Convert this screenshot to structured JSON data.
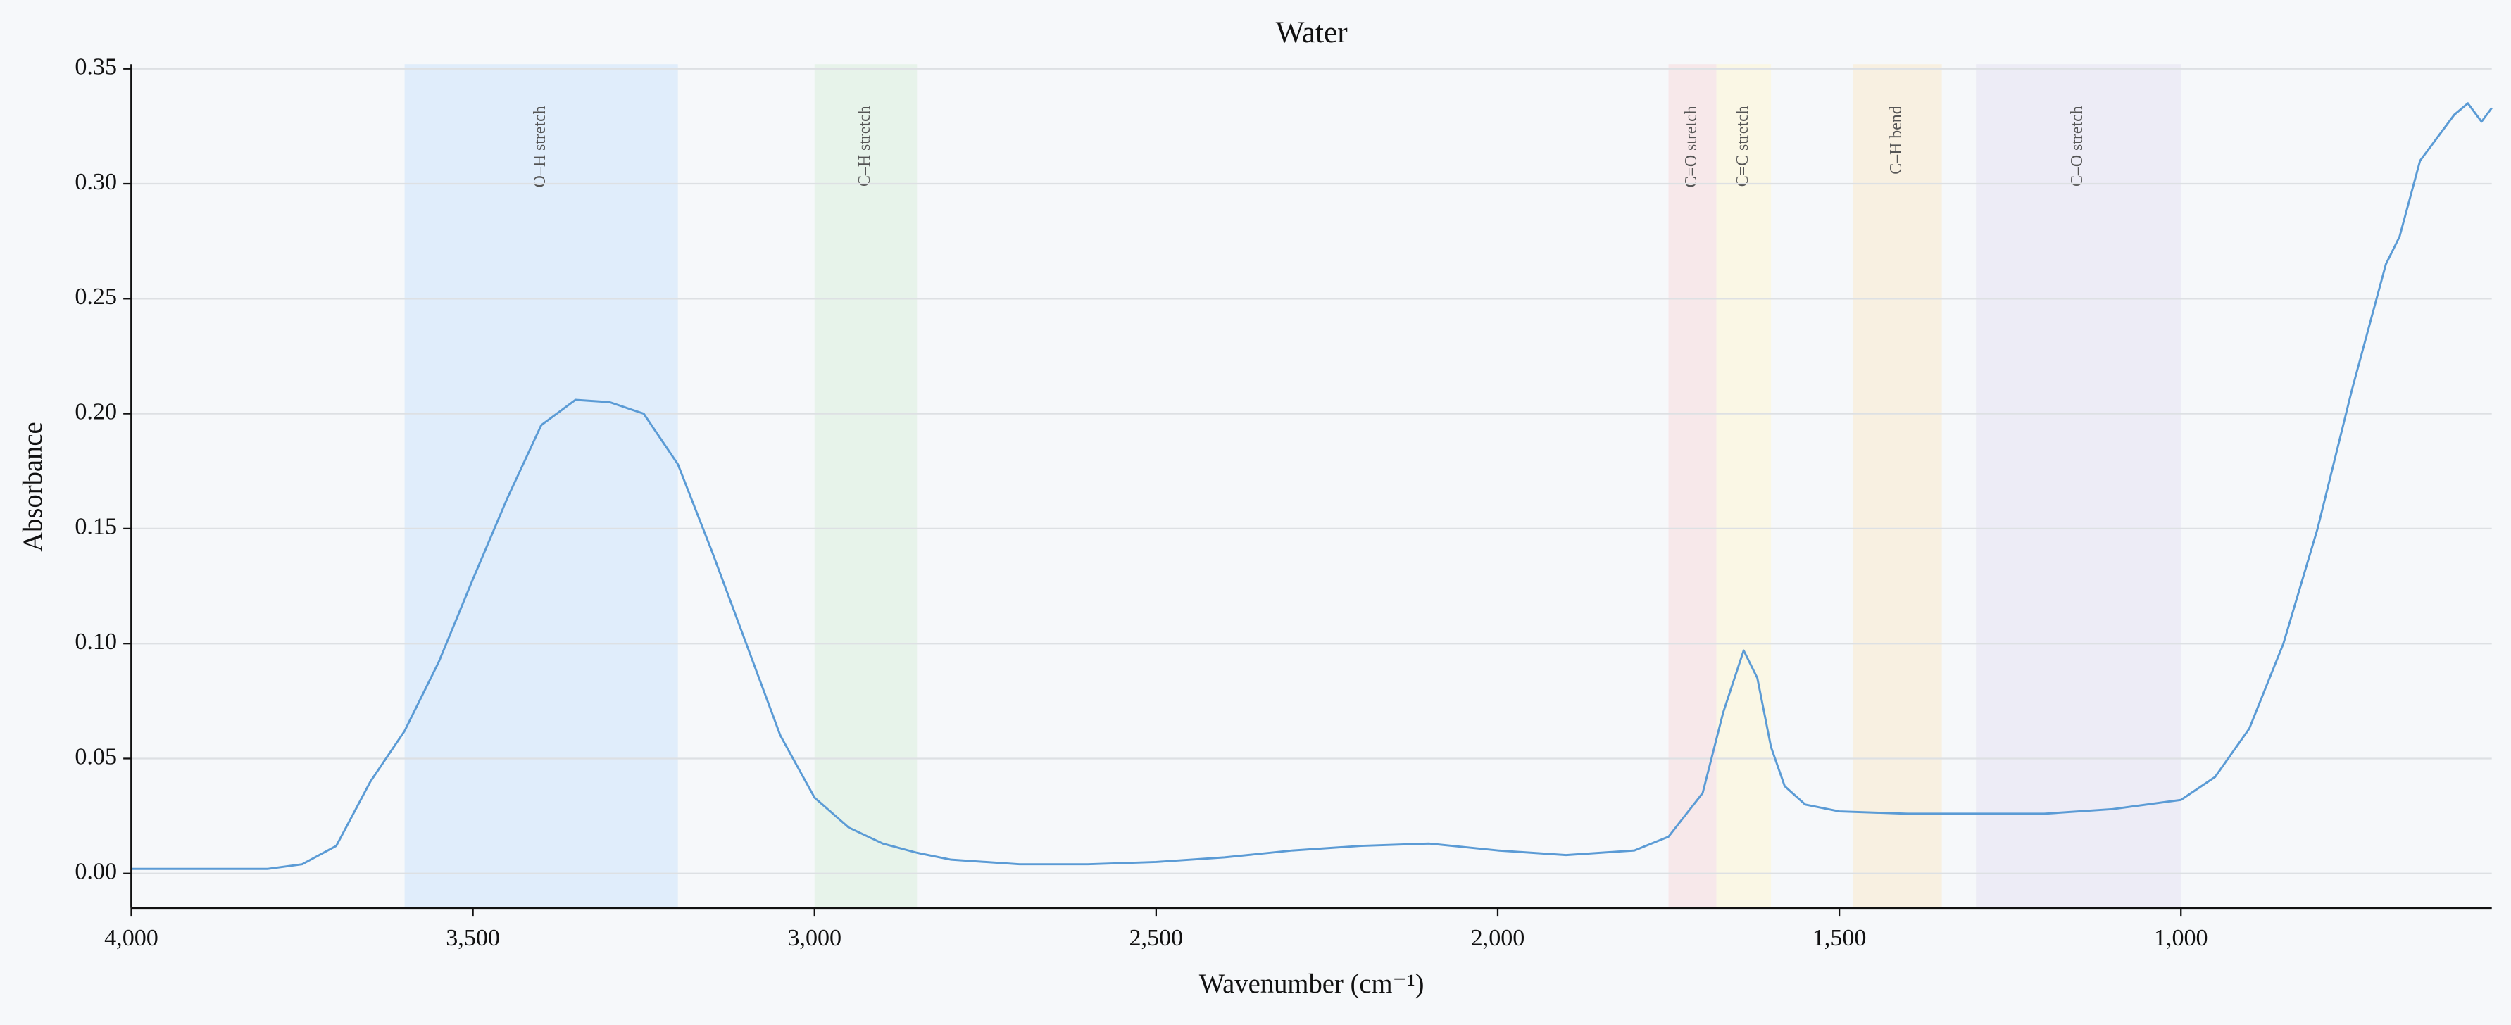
{
  "chart_data": {
    "type": "line",
    "title": "Water",
    "xlabel": "Wavenumber (cm⁻¹)",
    "ylabel": "Absorbance",
    "color": "#5b9bd5",
    "x": [
      4000,
      3900,
      3800,
      3750,
      3700,
      3650,
      3600,
      3550,
      3500,
      3450,
      3400,
      3350,
      3300,
      3250,
      3200,
      3150,
      3100,
      3050,
      3000,
      2950,
      2900,
      2850,
      2800,
      2700,
      2600,
      2500,
      2400,
      2300,
      2200,
      2100,
      2000,
      1900,
      1800,
      1750,
      1700,
      1670,
      1640,
      1620,
      1600,
      1580,
      1550,
      1500,
      1400,
      1300,
      1200,
      1100,
      1000,
      950,
      900,
      850,
      800,
      750,
      700,
      680,
      650,
      620,
      600,
      580,
      560,
      545
    ],
    "values": [
      0.002,
      0.002,
      0.002,
      0.004,
      0.012,
      0.04,
      0.062,
      0.092,
      0.128,
      0.163,
      0.195,
      0.206,
      0.205,
      0.2,
      0.178,
      0.14,
      0.1,
      0.06,
      0.033,
      0.02,
      0.013,
      0.009,
      0.006,
      0.004,
      0.004,
      0.005,
      0.007,
      0.01,
      0.012,
      0.013,
      0.01,
      0.008,
      0.01,
      0.016,
      0.035,
      0.07,
      0.097,
      0.085,
      0.055,
      0.038,
      0.03,
      0.027,
      0.026,
      0.026,
      0.026,
      0.028,
      0.032,
      0.042,
      0.063,
      0.1,
      0.15,
      0.21,
      0.265,
      0.277,
      0.31,
      0.322,
      0.33,
      0.335,
      0.327,
      0.333
    ],
    "xlim": [
      4000,
      545
    ],
    "ylim": [
      -0.015,
      0.352
    ],
    "xticks": [
      {
        "value": 4000,
        "label": "4,000"
      },
      {
        "value": 3500,
        "label": "3,500"
      },
      {
        "value": 3000,
        "label": "3,000"
      },
      {
        "value": 2500,
        "label": "2,500"
      },
      {
        "value": 2000,
        "label": "2,000"
      },
      {
        "value": 1500,
        "label": "1,500"
      },
      {
        "value": 1000,
        "label": "1,000"
      }
    ],
    "yticks": [
      {
        "value": 0,
        "label": "0.00"
      },
      {
        "value": 0.05,
        "label": "0.05"
      },
      {
        "value": 0.1,
        "label": "0.10"
      },
      {
        "value": 0.15,
        "label": "0.15"
      },
      {
        "value": 0.2,
        "label": "0.20"
      },
      {
        "value": 0.25,
        "label": "0.25"
      },
      {
        "value": 0.3,
        "label": "0.30"
      },
      {
        "value": 0.35,
        "label": "0.35"
      }
    ],
    "grid": true,
    "bands": [
      {
        "label": "O–H stretch",
        "from": 3600,
        "to": 3200,
        "color": "#dbeafb"
      },
      {
        "label": "C–H stretch",
        "from": 3000,
        "to": 2850,
        "color": "#e3f1e6"
      },
      {
        "label": "C=O stretch",
        "from": 1750,
        "to": 1680,
        "color": "#f8e4e6"
      },
      {
        "label": "C=C stretch",
        "from": 1680,
        "to": 1600,
        "color": "#fbf6e0"
      },
      {
        "label": "C–H bend",
        "from": 1480,
        "to": 1350,
        "color": "#f9eedb"
      },
      {
        "label": "C–O stretch",
        "from": 1300,
        "to": 1000,
        "color": "#ebe8f5"
      }
    ]
  }
}
